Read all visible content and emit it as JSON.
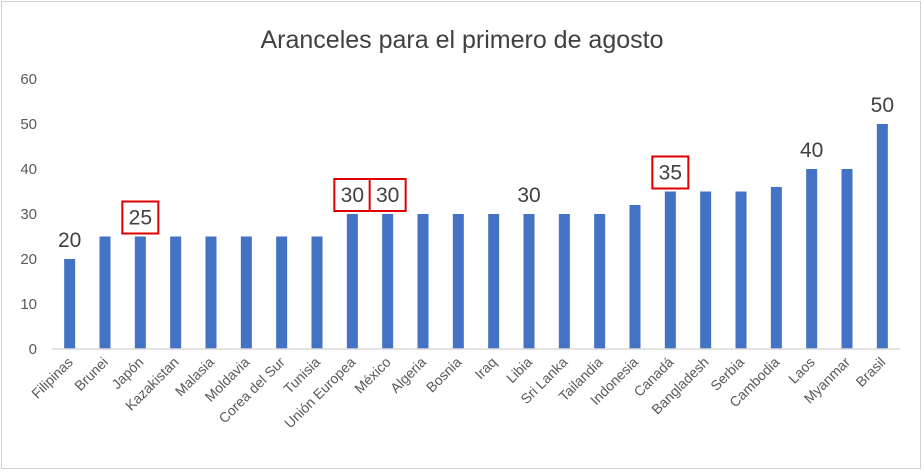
{
  "chart_data": {
    "type": "bar",
    "title": "Aranceles para el primero de agosto",
    "xlabel": "",
    "ylabel": "",
    "ylim": [
      0,
      60
    ],
    "yticks": [
      0,
      10,
      20,
      30,
      40,
      50,
      60
    ],
    "grid": false,
    "categories": [
      "Filipinas",
      "Brunei",
      "Japón",
      "Kazakistan",
      "Malasia",
      "Moldavia",
      "Corea del Sur",
      "Tunisia",
      "Unión Europea",
      "México",
      "Algeria",
      "Bosnia",
      "Iraq",
      "Libia",
      "Sri Lanka",
      "Tailandia",
      "Indonesia",
      "Canadá",
      "Bangladesh",
      "Serbia",
      "Cambodia",
      "Laos",
      "Myanmar",
      "Brasil"
    ],
    "values": [
      20,
      25,
      25,
      25,
      25,
      25,
      25,
      25,
      30,
      30,
      30,
      30,
      30,
      30,
      30,
      30,
      32,
      35,
      35,
      35,
      36,
      40,
      40,
      50
    ],
    "bar_color": "#4472C4",
    "highlight_color": "#E00000",
    "data_labels": [
      {
        "category": "Filipinas",
        "text": "20",
        "boxed": false
      },
      {
        "category": "Japón",
        "text": "25",
        "boxed": true
      },
      {
        "category": "Unión Europea",
        "text": "30",
        "boxed": true
      },
      {
        "category": "México",
        "text": "30",
        "boxed": true
      },
      {
        "category": "Libia",
        "text": "30",
        "boxed": false
      },
      {
        "category": "Canadá",
        "text": "35",
        "boxed": true
      },
      {
        "category": "Laos",
        "text": "40",
        "boxed": false
      },
      {
        "category": "Brasil",
        "text": "50",
        "boxed": false
      }
    ]
  }
}
